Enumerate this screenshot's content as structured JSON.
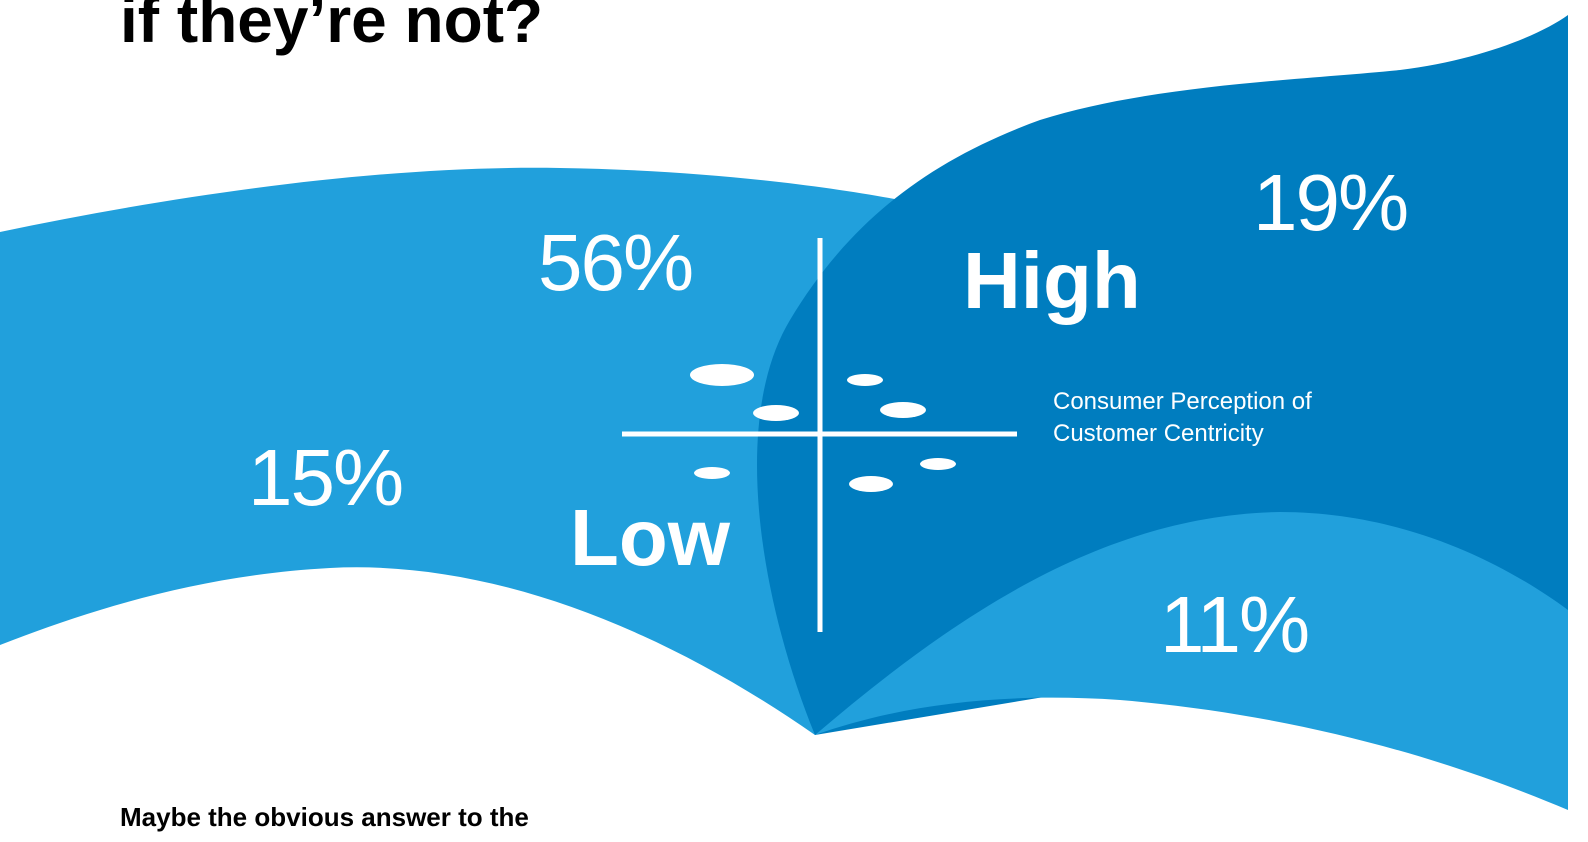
{
  "heading": "if they’re not?",
  "graphic": {
    "quadrants": {
      "top_left": "56%",
      "top_right": "19%",
      "bottom_left": "15%",
      "bottom_right": "11%"
    },
    "high_label": "High",
    "low_label": "Low",
    "axis_caption": [
      "Consumer Perception of",
      "Customer Centricity"
    ]
  },
  "intro": "Maybe the obvious answer to the"
}
